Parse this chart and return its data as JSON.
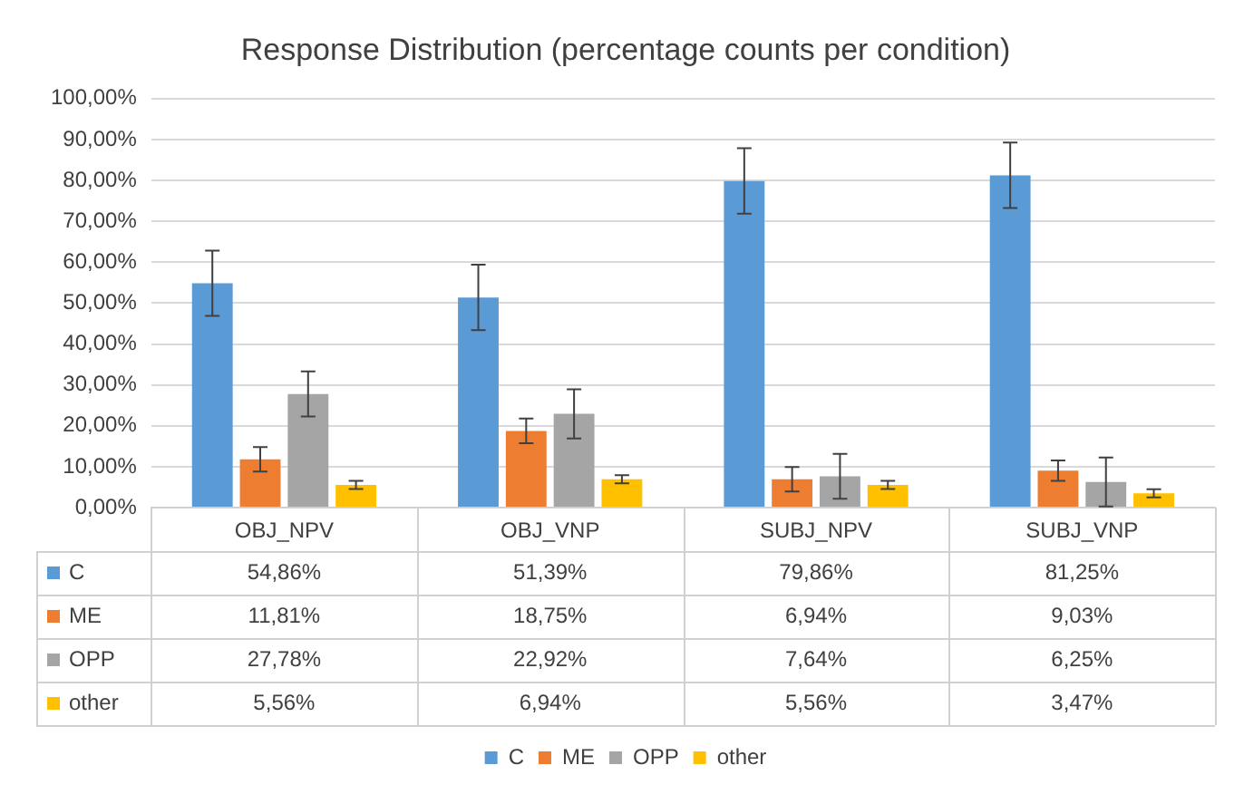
{
  "chart_data": {
    "type": "bar",
    "title": "Response Distribution (percentage counts per condition)",
    "categories": [
      "OBJ_NPV",
      "OBJ_VNP",
      "SUBJ_NPV",
      "SUBJ_VNP"
    ],
    "series": [
      {
        "name": "C",
        "color": "#5b9bd5",
        "values": [
          54.86,
          51.39,
          79.86,
          81.25
        ],
        "errors": [
          8,
          8,
          8,
          8
        ],
        "value_labels": [
          "54,86%",
          "51,39%",
          "79,86%",
          "81,25%"
        ]
      },
      {
        "name": "ME",
        "color": "#ed7d31",
        "values": [
          11.81,
          18.75,
          6.94,
          9.03
        ],
        "errors": [
          3,
          3,
          3,
          2.5
        ],
        "value_labels": [
          "11,81%",
          "18,75%",
          "6,94%",
          "9,03%"
        ]
      },
      {
        "name": "OPP",
        "color": "#a5a5a5",
        "values": [
          27.78,
          22.92,
          7.64,
          6.25
        ],
        "errors": [
          5.5,
          6,
          5.5,
          6
        ],
        "value_labels": [
          "27,78%",
          "22,92%",
          "7,64%",
          "6,25%"
        ]
      },
      {
        "name": "other",
        "color": "#ffc000",
        "values": [
          5.56,
          6.94,
          5.56,
          3.47
        ],
        "errors": [
          1,
          1,
          1,
          1
        ],
        "value_labels": [
          "5,56%",
          "6,94%",
          "5,56%",
          "3,47%"
        ]
      }
    ],
    "ylim": [
      0,
      100
    ],
    "yticks": [
      {
        "value": 0,
        "label": "0,00%"
      },
      {
        "value": 10,
        "label": "10,00%"
      },
      {
        "value": 20,
        "label": "20,00%"
      },
      {
        "value": 30,
        "label": "30,00%"
      },
      {
        "value": 40,
        "label": "40,00%"
      },
      {
        "value": 50,
        "label": "50,00%"
      },
      {
        "value": 60,
        "label": "60,00%"
      },
      {
        "value": 70,
        "label": "70,00%"
      },
      {
        "value": 80,
        "label": "80,00%"
      },
      {
        "value": 90,
        "label": "90,00%"
      },
      {
        "value": 100,
        "label": "100,00%"
      }
    ],
    "grid": "y",
    "legend": "bottom"
  }
}
